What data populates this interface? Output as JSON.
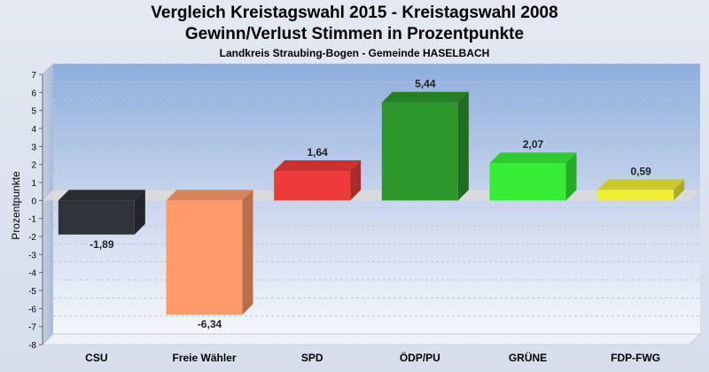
{
  "header": {
    "title": "Vergleich Kreistagswahl 2015 - Kreistagswahl 2008",
    "subtitle": "Gewinn/Verlust Stimmen in Prozentpunkte",
    "location": "Landkreis Straubing-Bogen - Gemeinde HASELBACH"
  },
  "chart_data": {
    "type": "bar",
    "title": "Vergleich Kreistagswahl 2015 - Kreistagswahl 2008",
    "subtitle": "Gewinn/Verlust Stimmen in Prozentpunkte",
    "xlabel": "",
    "ylabel": "Prozentpunkte",
    "ylim": [
      -8,
      7
    ],
    "yticks": [
      7,
      6,
      5,
      4,
      3,
      2,
      1,
      0,
      -1,
      -2,
      -3,
      -4,
      -5,
      -6,
      -7,
      -8
    ],
    "grid": true,
    "categories": [
      "CSU",
      "Freie Wähler",
      "SPD",
      "ÖDP/PU",
      "GRÜNE",
      "FDP-FWG"
    ],
    "values": [
      -1.89,
      -6.34,
      1.64,
      5.44,
      2.07,
      0.59
    ],
    "value_labels": [
      "-1,89",
      "-6,34",
      "1,64",
      "5,44",
      "2,07",
      "0,59"
    ],
    "colors": [
      "#30343a",
      "#ff9a6a",
      "#ee3a3a",
      "#2c962c",
      "#36ee36",
      "#eeee36"
    ]
  }
}
